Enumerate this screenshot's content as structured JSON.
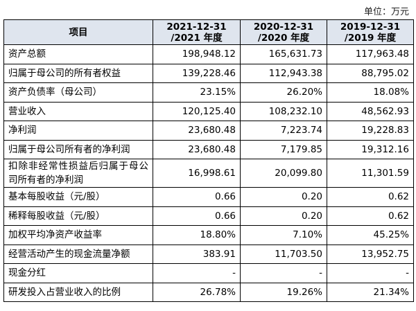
{
  "unit": "单位：万元",
  "table": {
    "header": [
      "项目",
      [
        "2021-12-31",
        "/2021 年度"
      ],
      [
        "2020-12-31",
        "/2020 年度"
      ],
      [
        "2019-12-31",
        "/2019 年度"
      ]
    ],
    "rows": [
      [
        "资产总额",
        "198,948.12",
        "165,631.73",
        "117,963.48"
      ],
      [
        "归属于母公司的所有者权益",
        "139,228.46",
        "112,943.38",
        "88,795.02"
      ],
      [
        "资产负债率（母公司）",
        "23.15%",
        "26.20%",
        "18.08%"
      ],
      [
        "营业收入",
        "120,125.40",
        "108,232.10",
        "48,562.93"
      ],
      [
        "净利润",
        "23,680.48",
        "7,223.74",
        "19,228.83"
      ],
      [
        "归属于母公司所有者的净利润",
        "23,680.48",
        "7,179.85",
        "19,312.16"
      ],
      [
        "扣除非经常性损益后归属于母公司所有者的净利润",
        "16,998.61",
        "20,099.80",
        "11,301.59"
      ],
      [
        "基本每股收益（元/股）",
        "0.66",
        "0.20",
        "0.62"
      ],
      [
        "稀释每股收益（元/股）",
        "0.66",
        "0.20",
        "0.62"
      ],
      [
        "加权平均净资产收益率",
        "18.80%",
        "7.10%",
        "45.25%"
      ],
      [
        "经营活动产生的现金流量净额",
        "383.91",
        "11,703.50",
        "13,952.75"
      ],
      [
        "现金分红",
        "-",
        "-",
        "-"
      ],
      [
        "研发投入占营业收入的比例",
        "26.78%",
        "19.26%",
        "21.34%"
      ]
    ]
  }
}
